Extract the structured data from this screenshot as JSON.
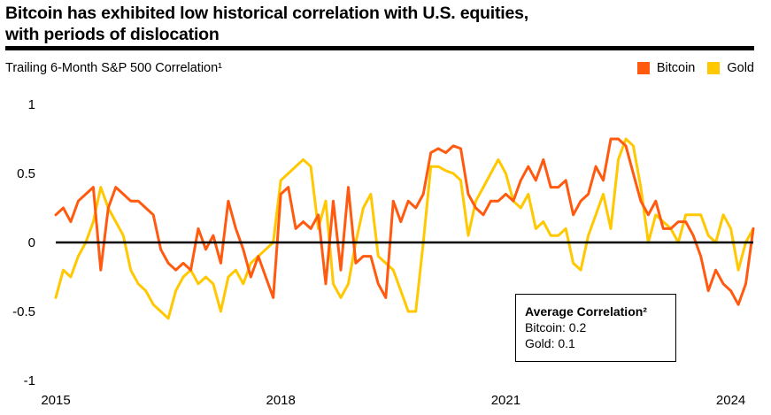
{
  "header": {
    "title_line1": "Bitcoin has exhibited low historical correlation with U.S. equities,",
    "title_line2": "with periods of dislocation",
    "subtitle": "Trailing 6-Month S&P 500 Correlation¹"
  },
  "legend": [
    {
      "label": "Bitcoin",
      "color": "#ff5a0f"
    },
    {
      "label": "Gold",
      "color": "#ffc800"
    }
  ],
  "annotation": {
    "title": "Average Correlation²",
    "line1": "Bitcoin: 0.2",
    "line2": "Gold: 0.1"
  },
  "chart_data": {
    "type": "line",
    "title": "Bitcoin has exhibited low historical correlation with U.S. equities, with periods of dislocation",
    "subtitle": "Trailing 6-Month S&P 500 Correlation¹",
    "ylim": [
      -1,
      1
    ],
    "yticks": [
      1,
      0.5,
      0,
      -0.5,
      -1
    ],
    "ytick_labels": [
      "1",
      "0.5",
      "0",
      "-0.5",
      "-1"
    ],
    "xlim": [
      2015,
      2024.3
    ],
    "xticks": [
      2015,
      2018,
      2021,
      2024
    ],
    "xtick_labels": [
      "2015",
      "2018",
      "2021",
      "2024"
    ],
    "zero_line": true,
    "grid": false,
    "legend_position": "top-right",
    "series": [
      {
        "name": "Bitcoin",
        "color": "#ff5a0f",
        "x": [
          2015.0,
          2015.1,
          2015.2,
          2015.3,
          2015.4,
          2015.5,
          2015.6,
          2015.7,
          2015.8,
          2015.9,
          2016.0,
          2016.1,
          2016.2,
          2016.3,
          2016.4,
          2016.5,
          2016.6,
          2016.7,
          2016.8,
          2016.9,
          2017.0,
          2017.1,
          2017.2,
          2017.3,
          2017.4,
          2017.5,
          2017.6,
          2017.7,
          2017.8,
          2017.9,
          2018.0,
          2018.1,
          2018.2,
          2018.3,
          2018.4,
          2018.5,
          2018.6,
          2018.7,
          2018.8,
          2018.9,
          2019.0,
          2019.1,
          2019.2,
          2019.3,
          2019.4,
          2019.5,
          2019.6,
          2019.7,
          2019.8,
          2019.9,
          2020.0,
          2020.1,
          2020.2,
          2020.3,
          2020.4,
          2020.5,
          2020.6,
          2020.7,
          2020.8,
          2020.9,
          2021.0,
          2021.1,
          2021.2,
          2021.3,
          2021.4,
          2021.5,
          2021.6,
          2021.7,
          2021.8,
          2021.9,
          2022.0,
          2022.1,
          2022.2,
          2022.3,
          2022.4,
          2022.5,
          2022.6,
          2022.7,
          2022.8,
          2022.9,
          2023.0,
          2023.1,
          2023.2,
          2023.3,
          2023.4,
          2023.5,
          2023.6,
          2023.7,
          2023.8,
          2023.9,
          2024.0,
          2024.1,
          2024.2,
          2024.3
        ],
        "y": [
          0.2,
          0.25,
          0.15,
          0.3,
          0.35,
          0.4,
          -0.2,
          0.25,
          0.4,
          0.35,
          0.3,
          0.3,
          0.25,
          0.2,
          -0.05,
          -0.15,
          -0.2,
          -0.15,
          -0.2,
          0.1,
          -0.05,
          0.05,
          -0.15,
          0.3,
          0.1,
          -0.05,
          -0.25,
          -0.1,
          -0.25,
          -0.4,
          0.35,
          0.4,
          0.1,
          0.15,
          0.1,
          0.2,
          -0.3,
          0.3,
          -0.2,
          0.4,
          -0.15,
          -0.1,
          -0.1,
          -0.3,
          -0.4,
          0.3,
          0.15,
          0.3,
          0.25,
          0.35,
          0.65,
          0.68,
          0.65,
          0.7,
          0.68,
          0.35,
          0.25,
          0.2,
          0.3,
          0.3,
          0.35,
          0.3,
          0.45,
          0.55,
          0.45,
          0.6,
          0.4,
          0.4,
          0.45,
          0.2,
          0.3,
          0.35,
          0.55,
          0.45,
          0.75,
          0.75,
          0.7,
          0.5,
          0.3,
          0.2,
          0.3,
          0.1,
          0.1,
          0.15,
          0.15,
          0.05,
          -0.1,
          -0.35,
          -0.2,
          -0.3,
          -0.35,
          -0.45,
          -0.3,
          0.1
        ]
      },
      {
        "name": "Gold",
        "color": "#ffc800",
        "x": [
          2015.0,
          2015.1,
          2015.2,
          2015.3,
          2015.4,
          2015.5,
          2015.6,
          2015.7,
          2015.8,
          2015.9,
          2016.0,
          2016.1,
          2016.2,
          2016.3,
          2016.4,
          2016.5,
          2016.6,
          2016.7,
          2016.8,
          2016.9,
          2017.0,
          2017.1,
          2017.2,
          2017.3,
          2017.4,
          2017.5,
          2017.6,
          2017.7,
          2017.8,
          2017.9,
          2018.0,
          2018.1,
          2018.2,
          2018.3,
          2018.4,
          2018.5,
          2018.6,
          2018.7,
          2018.8,
          2018.9,
          2019.0,
          2019.1,
          2019.2,
          2019.3,
          2019.4,
          2019.5,
          2019.6,
          2019.7,
          2019.8,
          2019.9,
          2020.0,
          2020.1,
          2020.2,
          2020.3,
          2020.4,
          2020.5,
          2020.6,
          2020.7,
          2020.8,
          2020.9,
          2021.0,
          2021.1,
          2021.2,
          2021.3,
          2021.4,
          2021.5,
          2021.6,
          2021.7,
          2021.8,
          2021.9,
          2022.0,
          2022.1,
          2022.2,
          2022.3,
          2022.4,
          2022.5,
          2022.6,
          2022.7,
          2022.8,
          2022.9,
          2023.0,
          2023.1,
          2023.2,
          2023.3,
          2023.4,
          2023.5,
          2023.6,
          2023.7,
          2023.8,
          2023.9,
          2024.0,
          2024.1,
          2024.2,
          2024.3
        ],
        "y": [
          -0.4,
          -0.2,
          -0.25,
          -0.1,
          0.0,
          0.15,
          0.4,
          0.25,
          0.15,
          0.05,
          -0.2,
          -0.3,
          -0.35,
          -0.45,
          -0.5,
          -0.55,
          -0.35,
          -0.25,
          -0.2,
          -0.3,
          -0.25,
          -0.3,
          -0.5,
          -0.25,
          -0.2,
          -0.3,
          -0.15,
          -0.1,
          -0.05,
          0.0,
          0.45,
          0.5,
          0.55,
          0.6,
          0.55,
          0.1,
          0.3,
          -0.3,
          -0.4,
          -0.3,
          0.0,
          0.25,
          0.35,
          -0.1,
          -0.15,
          -0.2,
          -0.35,
          -0.5,
          -0.5,
          0.0,
          0.55,
          0.55,
          0.52,
          0.5,
          0.45,
          0.05,
          0.3,
          0.4,
          0.5,
          0.6,
          0.5,
          0.3,
          0.25,
          0.35,
          0.1,
          0.15,
          0.05,
          0.05,
          0.1,
          -0.15,
          -0.2,
          0.05,
          0.2,
          0.35,
          0.1,
          0.6,
          0.75,
          0.7,
          0.4,
          0.0,
          0.2,
          0.15,
          0.1,
          0.0,
          0.2,
          0.2,
          0.2,
          0.05,
          0.0,
          0.2,
          0.1,
          -0.2,
          0.0,
          0.1
        ]
      }
    ]
  }
}
